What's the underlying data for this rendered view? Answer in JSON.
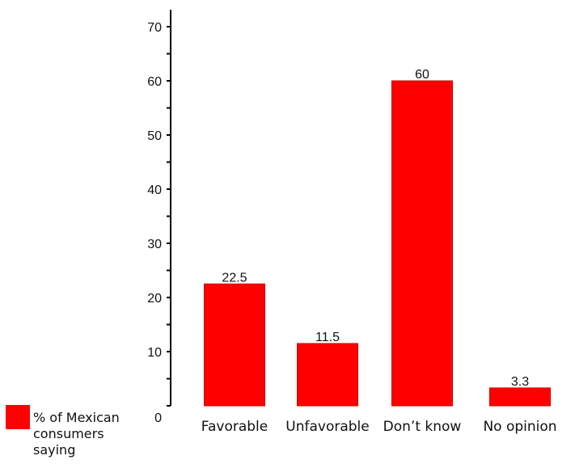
{
  "chart_data": {
    "type": "bar",
    "categories": [
      "Favorable",
      "Unfavorable",
      "Don’t know",
      "No opinion"
    ],
    "series": [
      {
        "name": "% of Mexican consumers saying",
        "values": [
          22.5,
          11.5,
          60,
          3.3
        ],
        "color": "#ff0000"
      }
    ],
    "data_labels": [
      "22.5",
      "11.5",
      "60",
      "3.3"
    ],
    "y_ticks": [
      "0",
      "10",
      "20",
      "30",
      "40",
      "50",
      "60",
      "70"
    ],
    "ylim": [
      0,
      70
    ],
    "grid": false,
    "legend_position": "bottom-left",
    "title": "",
    "xlabel": "",
    "ylabel": ""
  }
}
